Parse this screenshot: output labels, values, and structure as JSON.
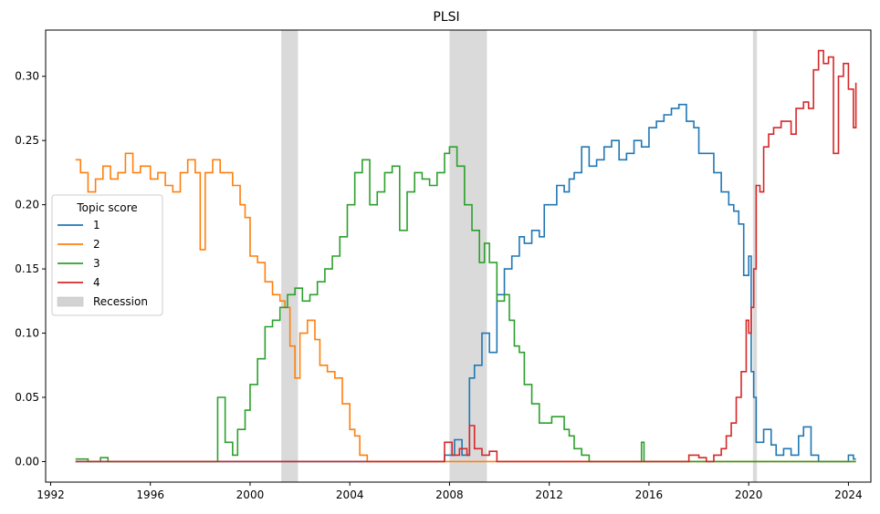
{
  "chart_data": {
    "type": "line",
    "title": "PLSI",
    "xlabel": "",
    "ylabel": "",
    "xlim": [
      1991.8,
      2024.9
    ],
    "ylim": [
      -0.016,
      0.336
    ],
    "x_ticks": [
      1992,
      1996,
      2000,
      2004,
      2008,
      2012,
      2016,
      2020,
      2024
    ],
    "y_ticks": [
      0.0,
      0.05,
      0.1,
      0.15,
      0.2,
      0.25,
      0.3
    ],
    "y_tick_labels": [
      "0.00",
      "0.05",
      "0.10",
      "0.15",
      "0.20",
      "0.25",
      "0.30"
    ],
    "grid": false,
    "legend": {
      "title": "Topic score",
      "placement": "center-left",
      "entries": [
        "1",
        "2",
        "3",
        "4",
        "Recession"
      ]
    },
    "recessions": [
      [
        2001.25,
        2001.92
      ],
      [
        2008.0,
        2009.5
      ],
      [
        2020.17,
        2020.33
      ]
    ],
    "recession_color": "#d3d3d3",
    "step": "post",
    "series": [
      {
        "name": "1",
        "color": "#1f77b4",
        "points": [
          [
            1993.0,
            0.0
          ],
          [
            2007.5,
            0.0
          ],
          [
            2007.8,
            0.005
          ],
          [
            2008.2,
            0.017
          ],
          [
            2008.5,
            0.005
          ],
          [
            2008.8,
            0.065
          ],
          [
            2009.0,
            0.075
          ],
          [
            2009.3,
            0.1
          ],
          [
            2009.6,
            0.085
          ],
          [
            2009.9,
            0.13
          ],
          [
            2010.2,
            0.15
          ],
          [
            2010.5,
            0.16
          ],
          [
            2010.8,
            0.175
          ],
          [
            2011.0,
            0.17
          ],
          [
            2011.3,
            0.18
          ],
          [
            2011.6,
            0.175
          ],
          [
            2011.8,
            0.2
          ],
          [
            2012.0,
            0.2
          ],
          [
            2012.3,
            0.215
          ],
          [
            2012.6,
            0.21
          ],
          [
            2012.8,
            0.22
          ],
          [
            2013.0,
            0.225
          ],
          [
            2013.3,
            0.245
          ],
          [
            2013.6,
            0.23
          ],
          [
            2013.9,
            0.235
          ],
          [
            2014.2,
            0.245
          ],
          [
            2014.5,
            0.25
          ],
          [
            2014.8,
            0.235
          ],
          [
            2015.1,
            0.24
          ],
          [
            2015.4,
            0.25
          ],
          [
            2015.7,
            0.245
          ],
          [
            2016.0,
            0.26
          ],
          [
            2016.3,
            0.265
          ],
          [
            2016.6,
            0.27
          ],
          [
            2016.9,
            0.275
          ],
          [
            2017.2,
            0.278
          ],
          [
            2017.5,
            0.265
          ],
          [
            2017.8,
            0.26
          ],
          [
            2018.0,
            0.24
          ],
          [
            2018.3,
            0.24
          ],
          [
            2018.6,
            0.225
          ],
          [
            2018.9,
            0.21
          ],
          [
            2019.2,
            0.2
          ],
          [
            2019.4,
            0.195
          ],
          [
            2019.6,
            0.185
          ],
          [
            2019.8,
            0.145
          ],
          [
            2020.0,
            0.16
          ],
          [
            2020.1,
            0.07
          ],
          [
            2020.2,
            0.05
          ],
          [
            2020.3,
            0.015
          ],
          [
            2020.6,
            0.025
          ],
          [
            2020.9,
            0.013
          ],
          [
            2021.1,
            0.005
          ],
          [
            2021.4,
            0.01
          ],
          [
            2021.7,
            0.005
          ],
          [
            2022.0,
            0.02
          ],
          [
            2022.2,
            0.027
          ],
          [
            2022.5,
            0.005
          ],
          [
            2022.8,
            0.0
          ],
          [
            2023.8,
            0.0
          ],
          [
            2024.0,
            0.005
          ],
          [
            2024.2,
            0.002
          ],
          [
            2024.3,
            0.002
          ]
        ]
      },
      {
        "name": "2",
        "color": "#ff7f0e",
        "points": [
          [
            1993.0,
            0.235
          ],
          [
            1993.2,
            0.225
          ],
          [
            1993.5,
            0.21
          ],
          [
            1993.8,
            0.22
          ],
          [
            1994.1,
            0.23
          ],
          [
            1994.4,
            0.22
          ],
          [
            1994.7,
            0.225
          ],
          [
            1995.0,
            0.24
          ],
          [
            1995.3,
            0.225
          ],
          [
            1995.6,
            0.23
          ],
          [
            1996.0,
            0.22
          ],
          [
            1996.3,
            0.225
          ],
          [
            1996.6,
            0.215
          ],
          [
            1996.9,
            0.21
          ],
          [
            1997.2,
            0.225
          ],
          [
            1997.5,
            0.235
          ],
          [
            1997.8,
            0.225
          ],
          [
            1998.0,
            0.165
          ],
          [
            1998.2,
            0.225
          ],
          [
            1998.5,
            0.235
          ],
          [
            1998.8,
            0.225
          ],
          [
            1999.0,
            0.225
          ],
          [
            1999.3,
            0.215
          ],
          [
            1999.6,
            0.2
          ],
          [
            1999.8,
            0.19
          ],
          [
            2000.0,
            0.16
          ],
          [
            2000.3,
            0.155
          ],
          [
            2000.6,
            0.14
          ],
          [
            2000.9,
            0.13
          ],
          [
            2001.2,
            0.125
          ],
          [
            2001.4,
            0.12
          ],
          [
            2001.6,
            0.09
          ],
          [
            2001.8,
            0.065
          ],
          [
            2002.0,
            0.1
          ],
          [
            2002.3,
            0.11
          ],
          [
            2002.6,
            0.095
          ],
          [
            2002.8,
            0.075
          ],
          [
            2003.1,
            0.07
          ],
          [
            2003.4,
            0.065
          ],
          [
            2003.7,
            0.045
          ],
          [
            2004.0,
            0.025
          ],
          [
            2004.2,
            0.02
          ],
          [
            2004.4,
            0.005
          ],
          [
            2004.7,
            0.0
          ],
          [
            2020.0,
            0.0
          ],
          [
            2024.3,
            0.0
          ]
        ]
      },
      {
        "name": "3",
        "color": "#2ca02c",
        "points": [
          [
            1993.0,
            0.002
          ],
          [
            1993.5,
            0.0
          ],
          [
            1994.0,
            0.003
          ],
          [
            1994.3,
            0.0
          ],
          [
            1998.5,
            0.0
          ],
          [
            1998.7,
            0.05
          ],
          [
            1999.0,
            0.015
          ],
          [
            1999.3,
            0.005
          ],
          [
            1999.5,
            0.025
          ],
          [
            1999.8,
            0.04
          ],
          [
            2000.0,
            0.06
          ],
          [
            2000.3,
            0.08
          ],
          [
            2000.6,
            0.105
          ],
          [
            2000.9,
            0.11
          ],
          [
            2001.2,
            0.12
          ],
          [
            2001.5,
            0.13
          ],
          [
            2001.8,
            0.135
          ],
          [
            2002.1,
            0.125
          ],
          [
            2002.4,
            0.13
          ],
          [
            2002.7,
            0.14
          ],
          [
            2003.0,
            0.15
          ],
          [
            2003.3,
            0.16
          ],
          [
            2003.6,
            0.175
          ],
          [
            2003.9,
            0.2
          ],
          [
            2004.2,
            0.225
          ],
          [
            2004.5,
            0.235
          ],
          [
            2004.8,
            0.2
          ],
          [
            2005.1,
            0.21
          ],
          [
            2005.4,
            0.225
          ],
          [
            2005.7,
            0.23
          ],
          [
            2006.0,
            0.18
          ],
          [
            2006.3,
            0.21
          ],
          [
            2006.6,
            0.225
          ],
          [
            2006.9,
            0.22
          ],
          [
            2007.2,
            0.215
          ],
          [
            2007.5,
            0.225
          ],
          [
            2007.8,
            0.24
          ],
          [
            2008.0,
            0.245
          ],
          [
            2008.3,
            0.23
          ],
          [
            2008.6,
            0.2
          ],
          [
            2008.9,
            0.18
          ],
          [
            2009.2,
            0.155
          ],
          [
            2009.4,
            0.17
          ],
          [
            2009.6,
            0.155
          ],
          [
            2009.9,
            0.125
          ],
          [
            2010.2,
            0.13
          ],
          [
            2010.4,
            0.11
          ],
          [
            2010.6,
            0.09
          ],
          [
            2010.8,
            0.085
          ],
          [
            2011.0,
            0.06
          ],
          [
            2011.3,
            0.045
          ],
          [
            2011.6,
            0.03
          ],
          [
            2011.9,
            0.03
          ],
          [
            2012.1,
            0.035
          ],
          [
            2012.4,
            0.035
          ],
          [
            2012.6,
            0.025
          ],
          [
            2012.8,
            0.02
          ],
          [
            2013.0,
            0.01
          ],
          [
            2013.3,
            0.005
          ],
          [
            2013.6,
            0.0
          ],
          [
            2015.7,
            0.015
          ],
          [
            2015.8,
            0.0
          ],
          [
            2024.3,
            0.0
          ]
        ]
      },
      {
        "name": "4",
        "color": "#d62728",
        "points": [
          [
            1993.0,
            0.0
          ],
          [
            2007.6,
            0.0
          ],
          [
            2007.8,
            0.015
          ],
          [
            2008.1,
            0.005
          ],
          [
            2008.4,
            0.01
          ],
          [
            2008.7,
            0.005
          ],
          [
            2008.8,
            0.028
          ],
          [
            2009.0,
            0.01
          ],
          [
            2009.3,
            0.005
          ],
          [
            2009.6,
            0.008
          ],
          [
            2009.9,
            0.0
          ],
          [
            2017.3,
            0.0
          ],
          [
            2017.6,
            0.005
          ],
          [
            2018.0,
            0.003
          ],
          [
            2018.3,
            0.0
          ],
          [
            2018.6,
            0.005
          ],
          [
            2018.9,
            0.01
          ],
          [
            2019.1,
            0.02
          ],
          [
            2019.3,
            0.03
          ],
          [
            2019.5,
            0.05
          ],
          [
            2019.7,
            0.07
          ],
          [
            2019.9,
            0.11
          ],
          [
            2020.0,
            0.1
          ],
          [
            2020.1,
            0.12
          ],
          [
            2020.2,
            0.15
          ],
          [
            2020.3,
            0.215
          ],
          [
            2020.45,
            0.21
          ],
          [
            2020.6,
            0.245
          ],
          [
            2020.8,
            0.255
          ],
          [
            2021.0,
            0.26
          ],
          [
            2021.3,
            0.265
          ],
          [
            2021.5,
            0.265
          ],
          [
            2021.7,
            0.255
          ],
          [
            2021.9,
            0.275
          ],
          [
            2022.2,
            0.28
          ],
          [
            2022.4,
            0.275
          ],
          [
            2022.6,
            0.305
          ],
          [
            2022.8,
            0.32
          ],
          [
            2023.0,
            0.31
          ],
          [
            2023.2,
            0.315
          ],
          [
            2023.4,
            0.24
          ],
          [
            2023.6,
            0.3
          ],
          [
            2023.8,
            0.31
          ],
          [
            2024.0,
            0.29
          ],
          [
            2024.2,
            0.26
          ],
          [
            2024.3,
            0.295
          ]
        ]
      }
    ]
  }
}
